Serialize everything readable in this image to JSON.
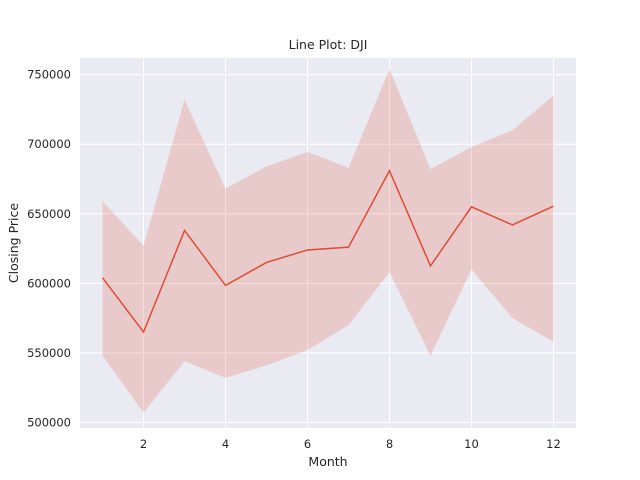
{
  "chart_data": {
    "type": "line",
    "title": "Line Plot: DJI",
    "xlabel": "Month",
    "ylabel": "Closing Price",
    "x": [
      1,
      2,
      3,
      4,
      5,
      6,
      7,
      8,
      9,
      10,
      11,
      12
    ],
    "series": [
      {
        "values": [
          604000,
          565000,
          638000,
          598500,
          615000,
          624000,
          626000,
          681000,
          612500,
          655000,
          642000,
          655500
        ],
        "ci_upper": [
          659000,
          627000,
          732000,
          668000,
          684000,
          694500,
          683000,
          754000,
          682000,
          698000,
          710000,
          735000
        ],
        "ci_lower": [
          548000,
          507000,
          544000,
          532000,
          541000,
          552000,
          570000,
          608000,
          548000,
          610000,
          575000,
          558000
        ],
        "color": "#e24a33"
      }
    ],
    "xticks": [
      2,
      4,
      6,
      8,
      10,
      12
    ],
    "yticks": [
      500000,
      550000,
      600000,
      650000,
      700000,
      750000
    ],
    "xlim": [
      0.45,
      12.55
    ],
    "ylim": [
      496000,
      762000
    ],
    "grid": true,
    "background": "#eaeaf2",
    "grid_color": "#ffffff"
  }
}
